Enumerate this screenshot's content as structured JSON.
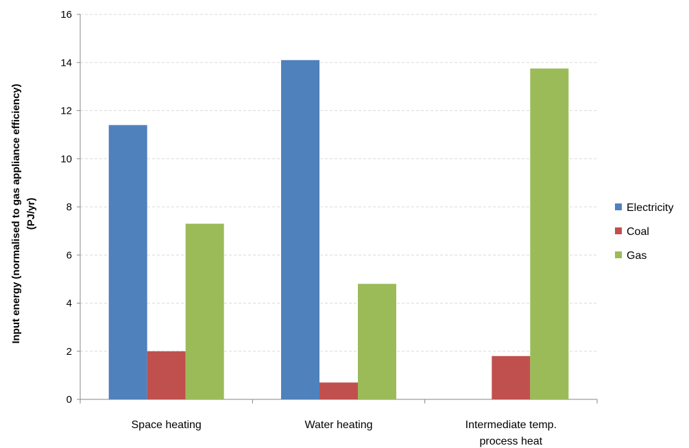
{
  "chart_data": {
    "type": "bar",
    "title": "",
    "categories": [
      [
        "Space heating"
      ],
      [
        "Water heating"
      ],
      [
        "Intermediate temp.",
        "process heat"
      ]
    ],
    "series": [
      {
        "name": "Electricity",
        "color": "#4F81BD",
        "values": [
          11.4,
          14.1,
          0
        ]
      },
      {
        "name": "Coal",
        "color": "#C0504D",
        "values": [
          2.0,
          0.7,
          1.8
        ]
      },
      {
        "name": "Gas",
        "color": "#9BBB59",
        "values": [
          7.3,
          4.8,
          13.75
        ]
      }
    ],
    "xlabel": "",
    "ylabel_lines": [
      "Input energy (normalised to gas appliance  efficiency)",
      "(PJ/yr)"
    ],
    "ylim": [
      0,
      16
    ],
    "yticks": [
      0,
      2,
      4,
      6,
      8,
      10,
      12,
      14,
      16
    ],
    "grid": true,
    "legend_position": "right"
  }
}
